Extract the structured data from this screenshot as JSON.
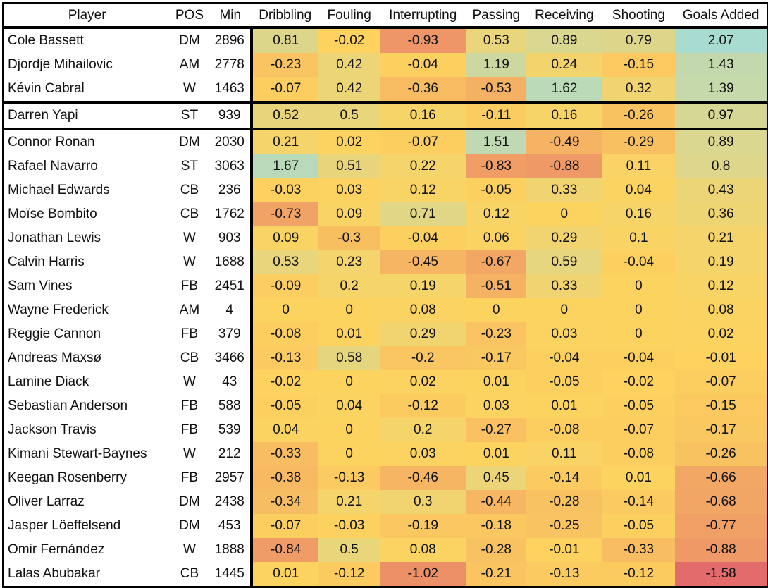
{
  "chart_data": {
    "type": "heatmap",
    "columns": [
      "Player",
      "POS",
      "Min",
      "Dribbling",
      "Fouling",
      "Interrupting",
      "Passing",
      "Receiving",
      "Shooting",
      "Goals Added"
    ],
    "groups": [
      [
        0,
        3
      ],
      [
        3,
        4
      ],
      [
        4,
        23
      ]
    ],
    "colors": {
      "negative": "#e36a6c",
      "zero": "#fdd35f",
      "positive": "#a8dcd2"
    },
    "rows": [
      [
        "Cole Bassett",
        "DM",
        2896,
        0.81,
        -0.02,
        -0.93,
        0.53,
        0.89,
        0.79,
        2.07
      ],
      [
        "Djordje Mihailovic",
        "AM",
        2778,
        -0.23,
        0.42,
        -0.04,
        1.19,
        0.24,
        -0.15,
        1.43
      ],
      [
        "Kévin Cabral",
        "W",
        1463,
        -0.07,
        0.42,
        -0.36,
        -0.53,
        1.62,
        0.32,
        1.39
      ],
      [
        "Darren Yapi",
        "ST",
        939,
        0.52,
        0.5,
        0.16,
        -0.11,
        0.16,
        -0.26,
        0.97
      ],
      [
        "Connor Ronan",
        "DM",
        2030,
        0.21,
        0.02,
        -0.07,
        1.51,
        -0.49,
        -0.29,
        0.89
      ],
      [
        "Rafael Navarro",
        "ST",
        3063,
        1.67,
        0.51,
        0.22,
        -0.83,
        -0.88,
        0.11,
        0.8
      ],
      [
        "Michael Edwards",
        "CB",
        236,
        -0.03,
        0.03,
        0.12,
        -0.05,
        0.33,
        0.04,
        0.43
      ],
      [
        "Moïse Bombito",
        "CB",
        1762,
        -0.73,
        0.09,
        0.71,
        0.12,
        0,
        0.16,
        0.36
      ],
      [
        "Jonathan Lewis",
        "W",
        903,
        0.09,
        -0.3,
        -0.04,
        0.06,
        0.29,
        0.1,
        0.21
      ],
      [
        "Calvin Harris",
        "W",
        1688,
        0.53,
        0.23,
        -0.45,
        -0.67,
        0.59,
        -0.04,
        0.19
      ],
      [
        "Sam Vines",
        "FB",
        2451,
        -0.09,
        0.2,
        0.19,
        -0.51,
        0.33,
        0,
        0.12
      ],
      [
        "Wayne Frederick",
        "AM",
        4,
        0,
        0,
        0.08,
        0,
        0,
        0,
        0.08
      ],
      [
        "Reggie Cannon",
        "FB",
        379,
        -0.08,
        0.01,
        0.29,
        -0.23,
        0.03,
        0,
        0.02
      ],
      [
        "Andreas Maxsø",
        "CB",
        3466,
        -0.13,
        0.58,
        -0.2,
        -0.17,
        -0.04,
        -0.04,
        -0.01
      ],
      [
        "Lamine Diack",
        "W",
        43,
        -0.02,
        0,
        0.02,
        0.01,
        -0.05,
        -0.02,
        -0.07
      ],
      [
        "Sebastian Anderson",
        "FB",
        588,
        -0.05,
        0.04,
        -0.12,
        0.03,
        0.01,
        -0.05,
        -0.15
      ],
      [
        "Jackson Travis",
        "FB",
        539,
        0.04,
        0,
        0.2,
        -0.27,
        -0.08,
        -0.07,
        -0.17
      ],
      [
        "Kimani Stewart-Baynes",
        "W",
        212,
        -0.33,
        0,
        0.03,
        0.01,
        0.11,
        -0.08,
        -0.26
      ],
      [
        "Keegan Rosenberry",
        "FB",
        2957,
        -0.38,
        -0.13,
        -0.46,
        0.45,
        -0.14,
        0.01,
        -0.66
      ],
      [
        "Oliver Larraz",
        "DM",
        2438,
        -0.34,
        0.21,
        0.3,
        -0.44,
        -0.28,
        -0.14,
        -0.68
      ],
      [
        "Jasper Löeffelsend",
        "DM",
        453,
        -0.07,
        -0.03,
        -0.19,
        -0.18,
        -0.25,
        -0.05,
        -0.77
      ],
      [
        "Omir Fernández",
        "W",
        1888,
        -0.84,
        0.5,
        0.08,
        -0.28,
        -0.01,
        -0.33,
        -0.88
      ],
      [
        "Lalas Abubakar",
        "CB",
        1445,
        0.01,
        -0.12,
        -1.02,
        -0.21,
        -0.13,
        -0.12,
        -1.58
      ]
    ]
  }
}
